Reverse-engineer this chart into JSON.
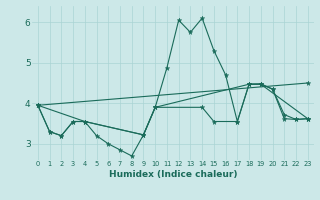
{
  "xlabel": "Humidex (Indice chaleur)",
  "bg_color": "#cce8e8",
  "line_color": "#1a6b5a",
  "grid_color": "#aad4d4",
  "xlim": [
    -0.5,
    23.5
  ],
  "ylim": [
    2.6,
    6.4
  ],
  "yticks": [
    3,
    4,
    5,
    6
  ],
  "xticks": [
    0,
    1,
    2,
    3,
    4,
    5,
    6,
    7,
    8,
    9,
    10,
    11,
    12,
    13,
    14,
    15,
    16,
    17,
    18,
    19,
    20,
    21,
    22,
    23
  ],
  "series": [
    {
      "x": [
        0,
        1,
        2,
        3,
        4,
        5,
        6,
        7,
        8,
        9,
        10,
        11,
        12,
        13,
        14,
        15,
        16,
        17,
        18,
        19,
        20,
        21,
        22,
        23
      ],
      "y": [
        3.95,
        3.3,
        3.2,
        3.55,
        3.55,
        3.2,
        3.0,
        2.85,
        2.7,
        3.22,
        3.9,
        4.88,
        6.05,
        5.75,
        6.1,
        5.3,
        4.7,
        3.55,
        4.47,
        4.48,
        4.35,
        3.72,
        3.6,
        3.62
      ]
    },
    {
      "x": [
        0,
        1,
        2,
        3,
        4,
        9,
        10,
        14,
        15,
        17,
        18,
        19,
        20,
        21,
        22,
        23
      ],
      "y": [
        3.95,
        3.3,
        3.2,
        3.55,
        3.55,
        3.22,
        3.9,
        3.9,
        3.55,
        3.55,
        4.47,
        4.47,
        4.35,
        3.62,
        3.6,
        3.62
      ]
    },
    {
      "x": [
        0,
        4,
        9,
        10,
        18,
        19,
        23
      ],
      "y": [
        3.95,
        3.55,
        3.22,
        3.9,
        4.47,
        4.47,
        3.62
      ]
    },
    {
      "x": [
        0,
        23
      ],
      "y": [
        3.95,
        4.5
      ]
    }
  ]
}
